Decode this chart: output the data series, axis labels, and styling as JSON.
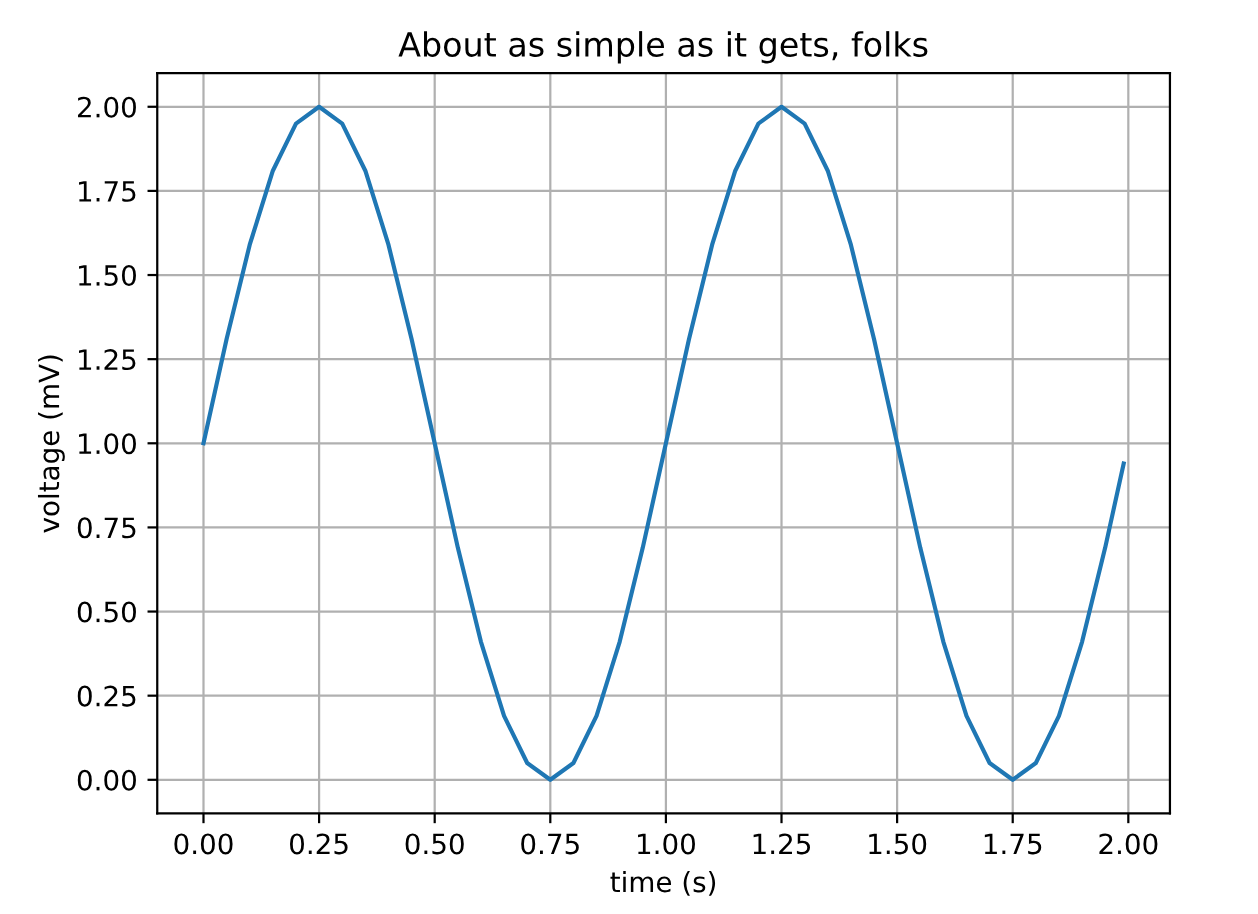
{
  "chart_data": {
    "type": "line",
    "title": "About as simple as it gets, folks",
    "xlabel": "time (s)",
    "ylabel": "voltage (mV)",
    "x": [
      0,
      0.05,
      0.1,
      0.15,
      0.2,
      0.25,
      0.3,
      0.35,
      0.4,
      0.45,
      0.5,
      0.55,
      0.6,
      0.65,
      0.7,
      0.75,
      0.8,
      0.85,
      0.9,
      0.95,
      1.0,
      1.05,
      1.1,
      1.15,
      1.2,
      1.25,
      1.3,
      1.35,
      1.4,
      1.45,
      1.5,
      1.55,
      1.6,
      1.65,
      1.7,
      1.75,
      1.8,
      1.85,
      1.9,
      1.95,
      1.99
    ],
    "series": [
      {
        "color": "#1f77b4",
        "values": [
          1.0,
          1.31,
          1.59,
          1.81,
          1.95,
          2.0,
          1.95,
          1.81,
          1.59,
          1.31,
          1.0,
          0.69,
          0.41,
          0.19,
          0.05,
          0.0,
          0.05,
          0.19,
          0.41,
          0.69,
          1.0,
          1.31,
          1.59,
          1.81,
          1.95,
          2.0,
          1.95,
          1.81,
          1.59,
          1.31,
          1.0,
          0.69,
          0.41,
          0.19,
          0.05,
          0.0,
          0.05,
          0.19,
          0.41,
          0.69,
          0.94
        ]
      }
    ],
    "xlim": [
      -0.1,
      2.09
    ],
    "ylim": [
      -0.1,
      2.1
    ],
    "xticks": [
      {
        "value": 0,
        "label": "0.00"
      },
      {
        "value": 0.25,
        "label": "0.25"
      },
      {
        "value": 0.5,
        "label": "0.50"
      },
      {
        "value": 0.75,
        "label": "0.75"
      },
      {
        "value": 1,
        "label": "1.00"
      },
      {
        "value": 1.25,
        "label": "1.25"
      },
      {
        "value": 1.5,
        "label": "1.50"
      },
      {
        "value": 1.75,
        "label": "1.75"
      },
      {
        "value": 2,
        "label": "2.00"
      }
    ],
    "yticks": [
      {
        "value": 0,
        "label": "0.00"
      },
      {
        "value": 0.25,
        "label": "0.25"
      },
      {
        "value": 0.5,
        "label": "0.50"
      },
      {
        "value": 0.75,
        "label": "0.75"
      },
      {
        "value": 1,
        "label": "1.00"
      },
      {
        "value": 1.25,
        "label": "1.25"
      },
      {
        "value": 1.5,
        "label": "1.50"
      },
      {
        "value": 1.75,
        "label": "1.75"
      },
      {
        "value": 2,
        "label": "2.00"
      }
    ],
    "grid": true
  }
}
